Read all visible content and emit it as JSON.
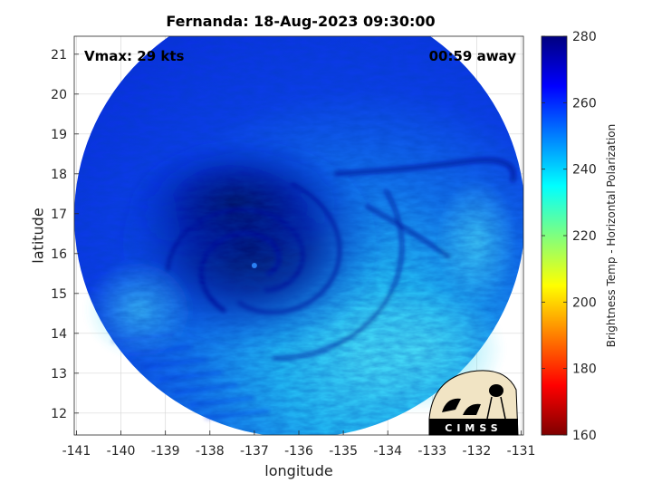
{
  "title": "Fernanda: 18-Aug-2023 09:30:00",
  "vmax_label": "Vmax: 29 kts",
  "time_away_label": "00:59 away",
  "axes": {
    "xlabel": "longitude",
    "ylabel": "latitude",
    "x_ticks": [
      -141,
      -140,
      -139,
      -138,
      -137,
      -136,
      -135,
      -134,
      -133,
      -132,
      -131
    ],
    "y_ticks": [
      12,
      13,
      14,
      15,
      16,
      17,
      18,
      19,
      20,
      21
    ],
    "xlim": [
      -141.05,
      -130.95
    ],
    "ylim": [
      11.45,
      21.45
    ],
    "grid": true
  },
  "colorbar": {
    "label": "Brightness Temp - Horizontal Polarization",
    "ticks": [
      160,
      180,
      200,
      220,
      240,
      260,
      280
    ],
    "range": [
      160,
      280
    ],
    "colormap": [
      "#7f0000",
      "#ff0000",
      "#ff7f00",
      "#ffff00",
      "#7fff7f",
      "#00ffff",
      "#007fff",
      "#0000ff",
      "#00007f"
    ]
  },
  "logo": {
    "text": "CIMSS"
  },
  "imagery": {
    "storm_center": [
      -137.0,
      15.7
    ],
    "swath_center": [
      -136.0,
      16.45
    ],
    "colors": {
      "cold": "#000c9a",
      "mid": "#0b2ee8",
      "warm": "#1fb4f2",
      "edge": "#3fd2f5"
    }
  }
}
